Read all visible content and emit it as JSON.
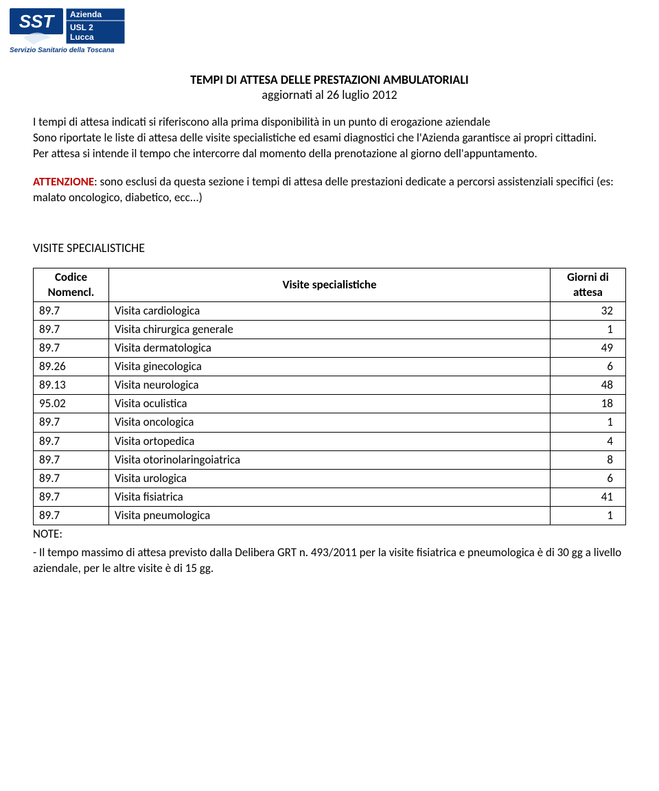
{
  "logo": {
    "sst_text": "SST",
    "box1": "Azienda",
    "box2_line1": "USL 2",
    "box2_line2": "Lucca",
    "tagline": "Servizio Sanitario della Toscana",
    "colors": {
      "blue": "#0a3c82",
      "white": "#ffffff",
      "border": "#2b5fa5"
    }
  },
  "header": {
    "title": "TEMPI DI ATTESA DELLE PRESTAZIONI AMBULATORIALI",
    "subtitle": "aggiornati al 26 luglio 2012"
  },
  "intro": {
    "p1": "I tempi di attesa indicati si riferiscono alla prima disponibilità in un punto di erogazione aziendale",
    "p2": "Sono riportate le liste di attesa delle visite specialistiche ed esami diagnostici che l'Azienda garantisce ai propri cittadini.",
    "p3": "Per attesa si intende il tempo che intercorre dal momento della prenotazione al giorno dell'appuntamento."
  },
  "attention": {
    "label": "ATTENZIONE",
    "text": ": sono esclusi da questa sezione i tempi di attesa delle prestazioni dedicate a percorsi assistenziali specifici (es: malato oncologico, diabetico, ecc...)"
  },
  "section_title": "VISITE SPECIALISTICHE",
  "table": {
    "columns": {
      "code_line1": "Codice",
      "code_line2": "Nomencl.",
      "name": "Visite specialistiche",
      "days_line1": "Giorni di",
      "days_line2": "attesa"
    },
    "rows": [
      {
        "code": "89.7",
        "name": "Visita cardiologica",
        "days": "32"
      },
      {
        "code": "89.7",
        "name": "Visita chirurgica generale",
        "days": "1"
      },
      {
        "code": "89.7",
        "name": "Visita dermatologica",
        "days": "49"
      },
      {
        "code": "89.26",
        "name": "Visita ginecologica",
        "days": "6"
      },
      {
        "code": "89.13",
        "name": "Visita neurologica",
        "days": "48"
      },
      {
        "code": "95.02",
        "name": "Visita oculistica",
        "days": "18"
      },
      {
        "code": "89.7",
        "name": "Visita oncologica",
        "days": "1"
      },
      {
        "code": "89.7",
        "name": "Visita ortopedica",
        "days": "4"
      },
      {
        "code": "89.7",
        "name": "Visita otorinolaringoiatrica",
        "days": "8"
      },
      {
        "code": "89.7",
        "name": "Visita urologica",
        "days": "6"
      },
      {
        "code": "89.7",
        "name": "Visita fisiatrica",
        "days": "41"
      },
      {
        "code": "89.7",
        "name": "Visita pneumologica",
        "days": "1"
      }
    ]
  },
  "notes": {
    "label": "NOTE:",
    "body": " - Il tempo massimo di attesa previsto dalla Delibera GRT n. 493/2011 per la visite fisiatrica e pneumologica è di 30 gg a livello aziendale, per le altre visite è di 15 gg."
  },
  "styles": {
    "accent_red": "#c00000",
    "text_color": "#000000",
    "table_border": "#000000"
  }
}
